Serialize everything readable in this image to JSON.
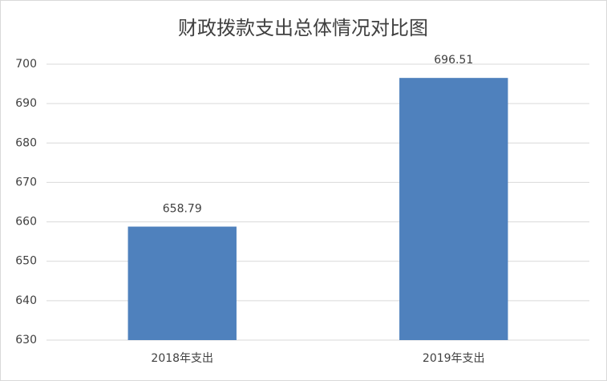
{
  "chart_data": {
    "type": "bar",
    "title": "财政拨款支出总体情况对比图",
    "categories": [
      "2018年支出",
      "2019年支出"
    ],
    "values": [
      658.79,
      696.51
    ],
    "color": "#4f81bd",
    "ylim": [
      630,
      700
    ],
    "yticks": [
      630,
      640,
      650,
      660,
      670,
      680,
      690,
      700
    ],
    "grid": true,
    "data_labels": true
  }
}
